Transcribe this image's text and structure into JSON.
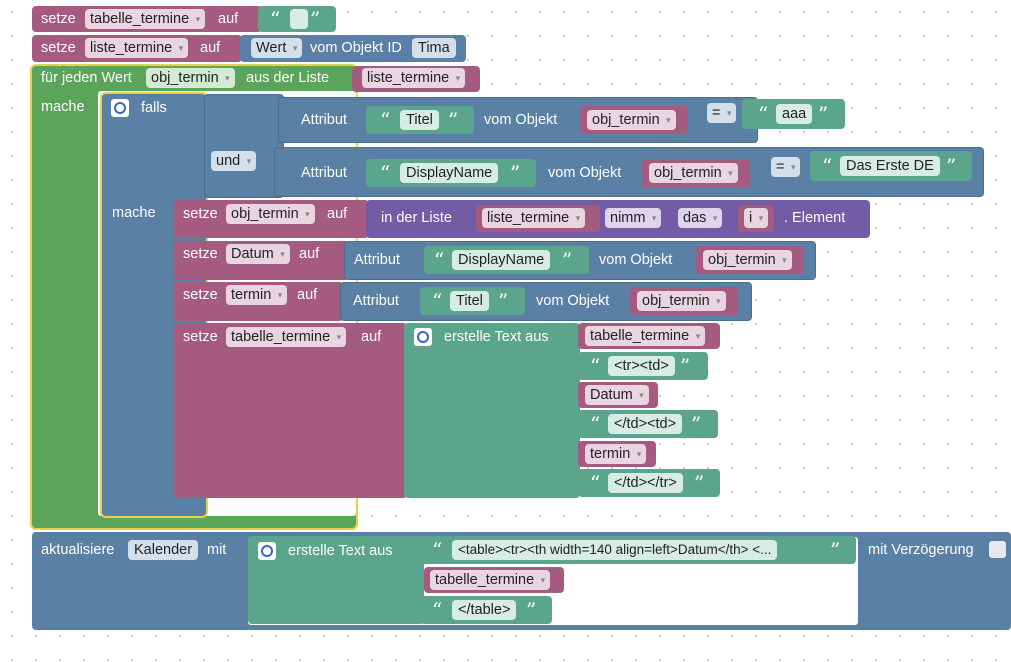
{
  "kw": {
    "setze": "setze",
    "auf": "auf",
    "vom_objekt_id": "vom Objekt ID",
    "fuer_jeden_wert": "für jeden Wert",
    "aus_der_liste": "aus der Liste",
    "mache": "mache",
    "falls": "falls",
    "und": "und",
    "attribut": "Attribut",
    "vom_objekt": "vom Objekt",
    "eq": "=",
    "in_der_liste": "in der Liste",
    "nimm": "nimm",
    "das": "das",
    "i": "i",
    "element": ". Element",
    "erstelle_text_aus": "erstelle Text aus",
    "aktualisiere": "aktualisiere",
    "mit": "mit",
    "mit_verzoegerung": "mit Verzögerung",
    "wert": "Wert",
    "quote_open": "“",
    "quote_close": "”"
  },
  "vars": {
    "tabelle_termine": "tabelle_termine",
    "liste_termine": "liste_termine",
    "obj_termin": "obj_termin",
    "datum": "Datum",
    "termin": "termin"
  },
  "strings": {
    "tima": "Tima",
    "titel": "Titel",
    "aaa": "aaa",
    "displayname": "DisplayName",
    "das_erste": "Das Erste DE",
    "tr_td": "<tr><td>",
    "td_td": "</td><td>",
    "td_tr": "</td></tr>",
    "table_head": "<table><tr><th width=140 align=left>Datum</th> <...",
    "table_end": "</table>",
    "kalender": "Kalender"
  },
  "colors": {
    "variables": "#a55b80",
    "loops": "#5ba55b",
    "logic": "#5b80a5",
    "text": "#5ba58c",
    "lists": "#745ba5",
    "selection": "#e8d24a"
  }
}
